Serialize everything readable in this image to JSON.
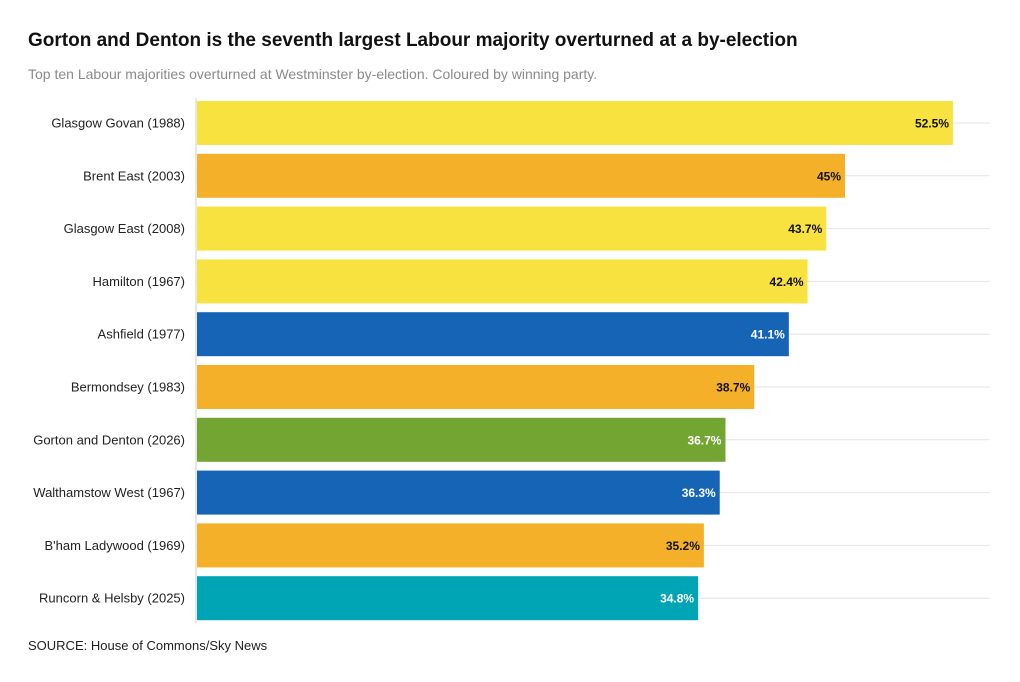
{
  "header": {
    "title": "Gorton and Denton is the seventh largest Labour majority overturned at a by-election",
    "subtitle": "Top ten Labour majorities overturned at Westminster by-election. Coloured by winning party."
  },
  "footer": {
    "source": "SOURCE: House of Commons/Sky News"
  },
  "colors": {
    "yellow": "#f8e23f",
    "orange": "#f5b02a",
    "blue": "#1664b5",
    "green": "#72a532",
    "teal": "#00a5b5",
    "gridline": "#e4e4e4",
    "axis": "#cfcfcf"
  },
  "chart_data": {
    "type": "bar",
    "orientation": "horizontal",
    "title": "Gorton and Denton is the seventh largest Labour majority overturned at a by-election",
    "subtitle": "Top ten Labour majorities overturned at Westminster by-election. Coloured by winning party.",
    "xlabel": "",
    "ylabel": "",
    "xlim": [
      0,
      60
    ],
    "grid": true,
    "categories": [
      "Glasgow Govan (1988)",
      "Brent East (2003)",
      "Glasgow East (2008)",
      "Hamilton (1967)",
      "Ashfield (1977)",
      "Bermondsey (1983)",
      "Gorton and Denton (2026)",
      "Walthamstow West (1967)",
      "B'ham Ladywood (1969)",
      "Runcorn & Helsby (2025)"
    ],
    "values": [
      52.5,
      45,
      43.7,
      42.4,
      41.1,
      38.7,
      36.7,
      36.3,
      35.2,
      34.8
    ],
    "value_labels": [
      "52.5%",
      "45%",
      "43.7%",
      "42.4%",
      "41.1%",
      "38.7%",
      "36.7%",
      "36.3%",
      "35.2%",
      "34.8%"
    ],
    "bar_colors": [
      "yellow",
      "orange",
      "yellow",
      "yellow",
      "blue",
      "orange",
      "green",
      "blue",
      "orange",
      "teal"
    ],
    "label_colors": [
      "#111111",
      "#111111",
      "#111111",
      "#111111",
      "#ffffff",
      "#111111",
      "#ffffff",
      "#ffffff",
      "#111111",
      "#ffffff"
    ]
  }
}
